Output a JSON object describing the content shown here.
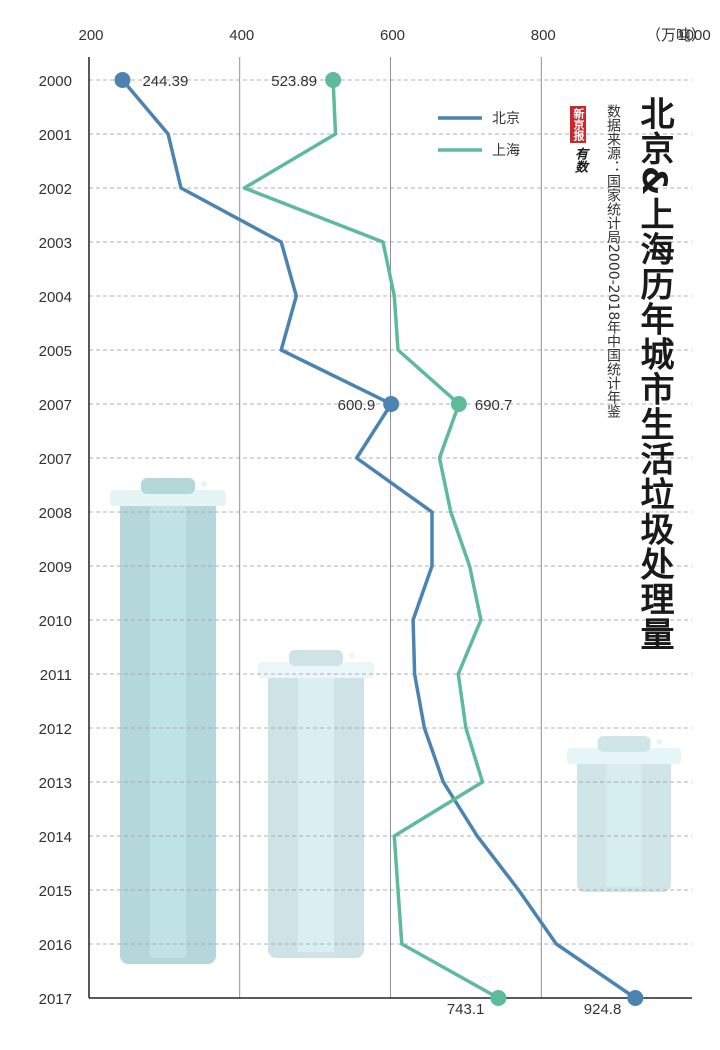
{
  "title": "北京&上海历年城市生活垃圾处理量",
  "source": "数据来源：国家统计局2000-2018年中国统计年鉴",
  "logo": {
    "brand": "新京报",
    "sub": "有数"
  },
  "colors": {
    "beijing": "#4b84b0",
    "shanghai": "#5dbb99",
    "grid": "#999999",
    "axis": "#222222"
  },
  "chart_data": {
    "type": "line",
    "x_unit": "（万吨）",
    "x_ticks": [
      200,
      400,
      600,
      800,
      1000
    ],
    "xlim": [
      200,
      1000
    ],
    "y_categories": [
      "2000",
      "2001",
      "2002",
      "2003",
      "2004",
      "2005",
      "2007",
      "2007",
      "2008",
      "2009",
      "2010",
      "2011",
      "2012",
      "2013",
      "2014",
      "2015",
      "2016",
      "2017"
    ],
    "legend_position": "top-right",
    "series": [
      {
        "name": "北京",
        "values": [
          244.39,
          305,
          322,
          455,
          475,
          455,
          600.9,
          555,
          655,
          655,
          630,
          632,
          645,
          670,
          715,
          770,
          820,
          924.8
        ],
        "labels": {
          "0": "244.39",
          "6": "600.9",
          "17": "924.8"
        }
      },
      {
        "name": "上海",
        "values": [
          523.89,
          527,
          406,
          590,
          605,
          610,
          690.7,
          665,
          680,
          705,
          720,
          690,
          700,
          722,
          605,
          610,
          615,
          743.1
        ],
        "labels": {
          "0": "523.89",
          "6": "690.7",
          "17": "743.1"
        }
      }
    ]
  }
}
